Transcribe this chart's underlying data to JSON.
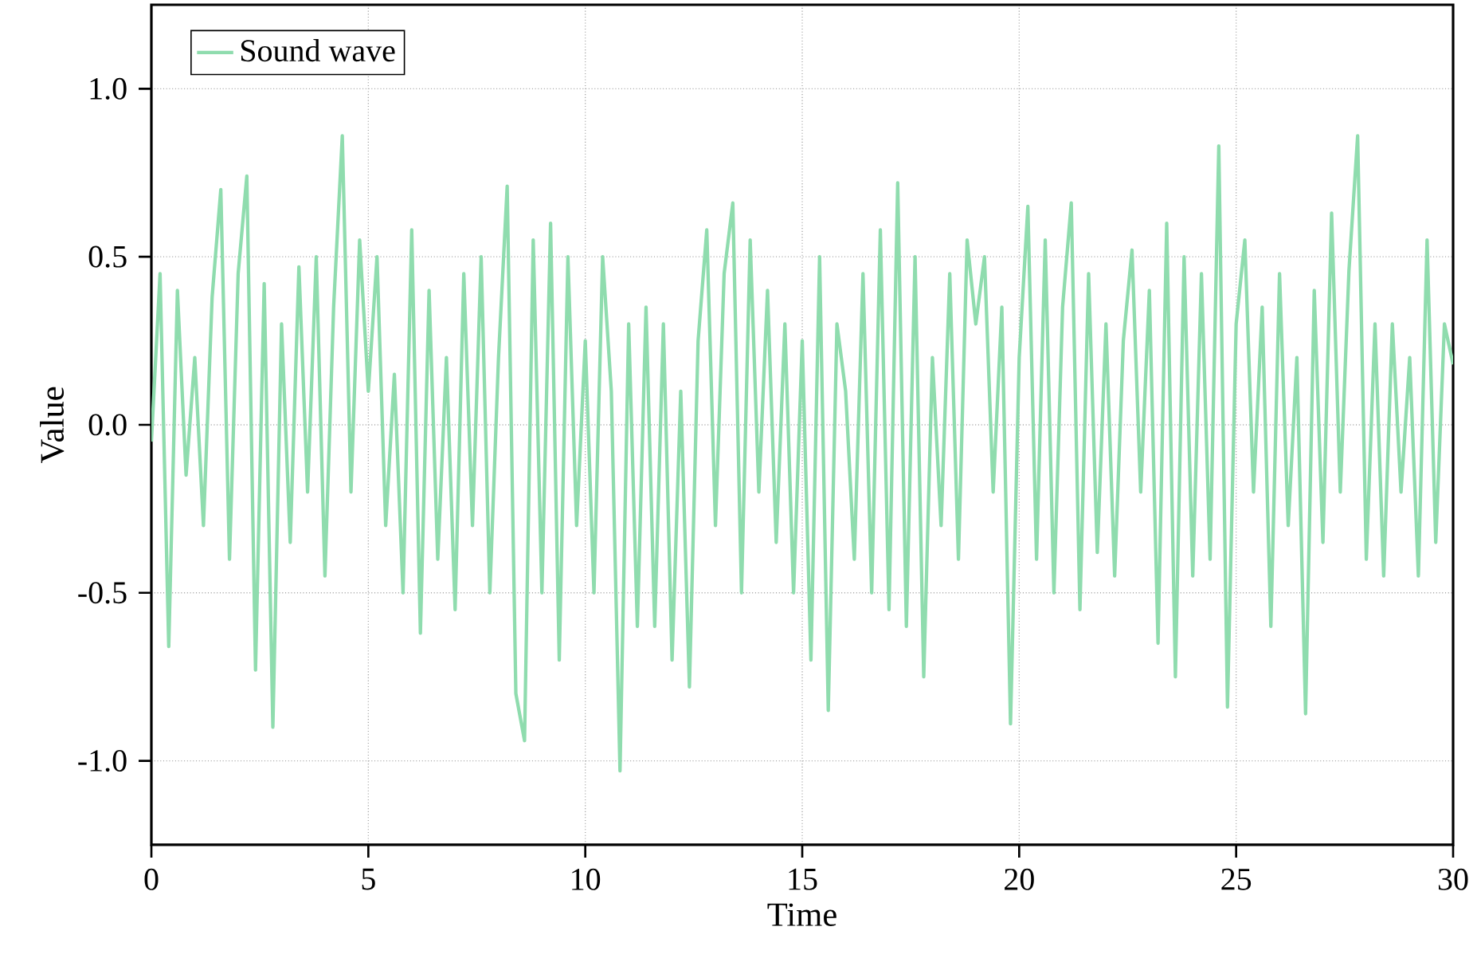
{
  "chart_data": {
    "type": "line",
    "xlabel": "Time",
    "ylabel": "Value",
    "xlim": [
      0,
      30
    ],
    "ylim": [
      -1.25,
      1.25
    ],
    "xticks": [
      0,
      5,
      10,
      15,
      20,
      25,
      30
    ],
    "yticks": [
      {
        "value": -1,
        "label": "-1.0"
      },
      {
        "value": -0.5,
        "label": "-0.5"
      },
      {
        "value": 0,
        "label": "0.0"
      },
      {
        "value": 0.5,
        "label": "0.5"
      },
      {
        "value": 1,
        "label": "1.0"
      }
    ],
    "grid": true,
    "legend": "top left",
    "marker": "none",
    "line_style": "solid",
    "series": [
      {
        "name": "Sound wave",
        "color": "#8fdcae",
        "x": [
          0.0,
          0.2,
          0.4,
          0.6,
          0.8,
          1.0,
          1.2,
          1.4,
          1.6,
          1.8,
          2.0,
          2.2,
          2.4,
          2.6,
          2.8,
          3.0,
          3.2,
          3.4,
          3.6,
          3.8,
          4.0,
          4.2,
          4.4,
          4.6,
          4.8,
          5.0,
          5.2,
          5.4,
          5.6,
          5.8,
          6.0,
          6.2,
          6.4,
          6.6,
          6.8,
          7.0,
          7.2,
          7.4,
          7.6,
          7.8,
          8.0,
          8.2,
          8.4,
          8.6,
          8.8,
          9.0,
          9.2,
          9.4,
          9.6,
          9.8,
          10.0,
          10.2,
          10.4,
          10.6,
          10.8,
          11.0,
          11.2,
          11.4,
          11.6,
          11.8,
          12.0,
          12.2,
          12.4,
          12.6,
          12.8,
          13.0,
          13.2,
          13.4,
          13.6,
          13.8,
          14.0,
          14.2,
          14.4,
          14.6,
          14.8,
          15.0,
          15.2,
          15.4,
          15.6,
          15.8,
          16.0,
          16.2,
          16.4,
          16.6,
          16.8,
          17.0,
          17.2,
          17.4,
          17.6,
          17.8,
          18.0,
          18.2,
          18.4,
          18.6,
          18.8,
          19.0,
          19.2,
          19.4,
          19.6,
          19.8,
          20.0,
          20.2,
          20.4,
          20.6,
          20.8,
          21.0,
          21.2,
          21.4,
          21.6,
          21.8,
          22.0,
          22.2,
          22.4,
          22.6,
          22.8,
          23.0,
          23.2,
          23.4,
          23.6,
          23.8,
          24.0,
          24.2,
          24.4,
          24.6,
          24.8,
          25.0,
          25.2,
          25.4,
          25.6,
          25.8,
          26.0,
          26.2,
          26.4,
          26.6,
          26.8,
          27.0,
          27.2,
          27.4,
          27.6,
          27.8,
          28.0,
          28.2,
          28.4,
          28.6,
          28.8,
          29.0,
          29.2,
          29.4,
          29.6,
          29.8,
          30.0
        ],
        "values": [
          -0.05,
          0.45,
          -0.66,
          0.4,
          -0.15,
          0.2,
          -0.3,
          0.38,
          0.7,
          -0.4,
          0.45,
          0.74,
          -0.73,
          0.42,
          -0.9,
          0.3,
          -0.35,
          0.47,
          -0.2,
          0.5,
          -0.45,
          0.35,
          0.86,
          -0.2,
          0.55,
          0.1,
          0.5,
          -0.3,
          0.15,
          -0.5,
          0.58,
          -0.62,
          0.4,
          -0.4,
          0.2,
          -0.55,
          0.45,
          -0.3,
          0.5,
          -0.5,
          0.2,
          0.71,
          -0.8,
          -0.94,
          0.55,
          -0.5,
          0.6,
          -0.7,
          0.5,
          -0.3,
          0.25,
          -0.5,
          0.5,
          0.1,
          -1.03,
          0.3,
          -0.6,
          0.35,
          -0.6,
          0.3,
          -0.7,
          0.1,
          -0.78,
          0.25,
          0.58,
          -0.3,
          0.45,
          0.66,
          -0.5,
          0.55,
          -0.2,
          0.4,
          -0.35,
          0.3,
          -0.5,
          0.25,
          -0.7,
          0.5,
          -0.85,
          0.3,
          0.1,
          -0.4,
          0.45,
          -0.5,
          0.58,
          -0.55,
          0.72,
          -0.6,
          0.5,
          -0.75,
          0.2,
          -0.3,
          0.45,
          -0.4,
          0.55,
          0.3,
          0.5,
          -0.2,
          0.35,
          -0.89,
          0.2,
          0.65,
          -0.4,
          0.55,
          -0.5,
          0.35,
          0.66,
          -0.55,
          0.45,
          -0.38,
          0.3,
          -0.45,
          0.25,
          0.52,
          -0.2,
          0.4,
          -0.65,
          0.6,
          -0.75,
          0.5,
          -0.45,
          0.45,
          -0.4,
          0.83,
          -0.84,
          0.3,
          0.55,
          -0.2,
          0.35,
          -0.6,
          0.45,
          -0.3,
          0.2,
          -0.86,
          0.4,
          -0.35,
          0.63,
          -0.2,
          0.46,
          0.86,
          -0.4,
          0.3,
          -0.45,
          0.3,
          -0.2,
          0.2,
          -0.45,
          0.55,
          -0.35,
          0.3,
          0.18
        ]
      }
    ]
  }
}
